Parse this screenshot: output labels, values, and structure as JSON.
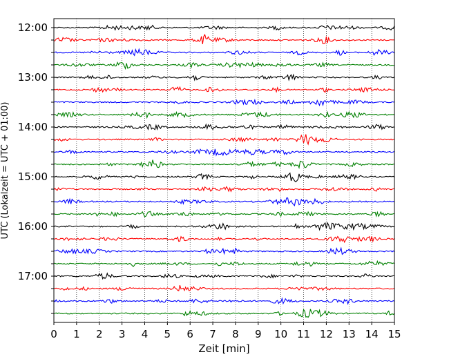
{
  "chart_data": {
    "type": "line",
    "title": "",
    "xlabel": "Zeit  [min]",
    "ylabel": "UTC (Lokalzeit = UTC + 01:00)",
    "xlim": [
      0,
      15
    ],
    "x_ticks": [
      "0",
      "1",
      "2",
      "3",
      "4",
      "5",
      "6",
      "7",
      "8",
      "9",
      "10",
      "11",
      "12",
      "13",
      "14",
      "15"
    ],
    "y_tick_labels": [
      "12:00",
      "13:00",
      "14:00",
      "15:00",
      "16:00",
      "17:00"
    ],
    "grid": "vertical dotted lines at each minute",
    "trace_colors": [
      "#000000",
      "#ff0000",
      "#0000ff",
      "#008000"
    ],
    "traces_per_hour": 4,
    "trace_interval_min": 15,
    "start_utc": "12:00",
    "end_utc": "17:45",
    "trace_count": 24
  }
}
